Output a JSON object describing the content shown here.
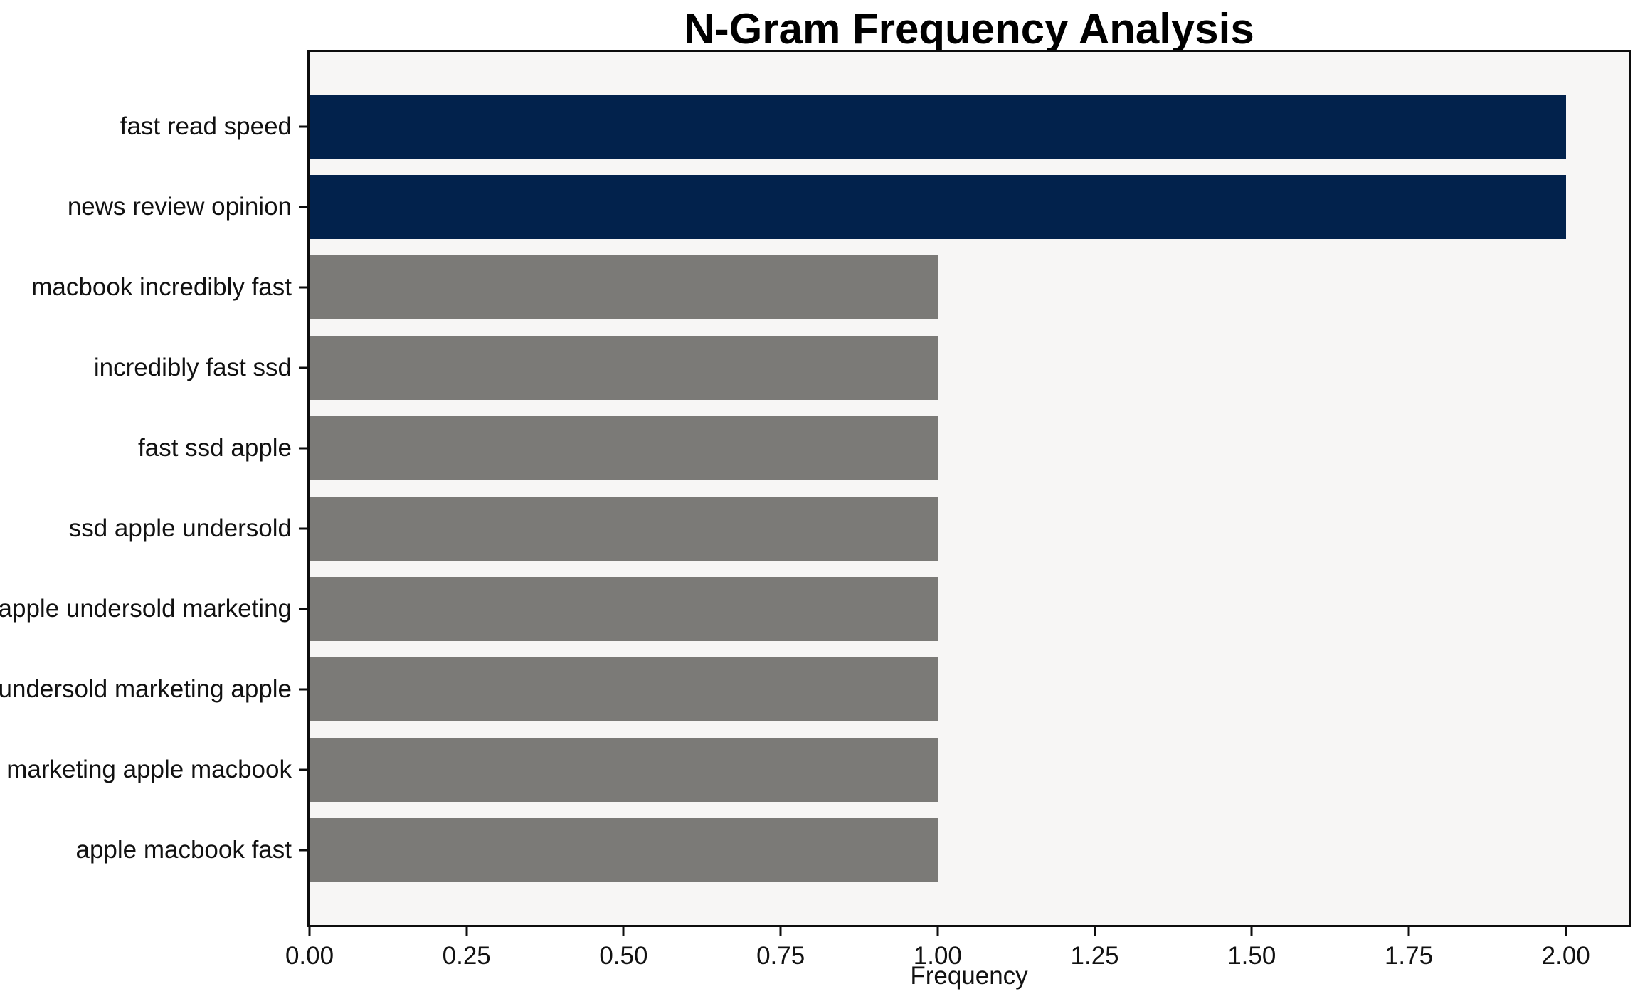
{
  "chart_data": {
    "type": "bar",
    "orientation": "horizontal",
    "title": "N-Gram Frequency Analysis",
    "xlabel": "Frequency",
    "ylabel": "",
    "categories": [
      "fast read speed",
      "news review opinion",
      "macbook incredibly fast",
      "incredibly fast ssd",
      "fast ssd apple",
      "ssd apple undersold",
      "apple undersold marketing",
      "undersold marketing apple",
      "marketing apple macbook",
      "apple macbook fast"
    ],
    "values": [
      2,
      2,
      1,
      1,
      1,
      1,
      1,
      1,
      1,
      1
    ],
    "bar_colors": [
      "#02224c",
      "#02224c",
      "#7b7a77",
      "#7b7a77",
      "#7b7a77",
      "#7b7a77",
      "#7b7a77",
      "#7b7a77",
      "#7b7a77",
      "#7b7a77"
    ],
    "xlim": [
      0,
      2.1
    ],
    "xticks": [
      {
        "value": 0.0,
        "label": "0.00"
      },
      {
        "value": 0.25,
        "label": "0.25"
      },
      {
        "value": 0.5,
        "label": "0.50"
      },
      {
        "value": 0.75,
        "label": "0.75"
      },
      {
        "value": 1.0,
        "label": "1.00"
      },
      {
        "value": 1.25,
        "label": "1.25"
      },
      {
        "value": 1.5,
        "label": "1.50"
      },
      {
        "value": 1.75,
        "label": "1.75"
      },
      {
        "value": 2.0,
        "label": "2.00"
      }
    ],
    "grid": false,
    "legend": null,
    "colors": {
      "highlight_bar": "#02224c",
      "default_bar": "#7b7a77",
      "plot_background": "#f7f6f5",
      "figure_background": "#ffffff",
      "spine": "#0d0d0d",
      "text": "#111111"
    }
  }
}
